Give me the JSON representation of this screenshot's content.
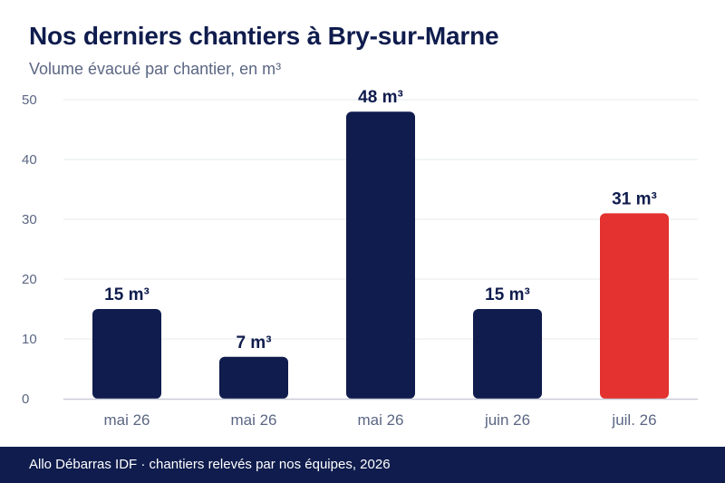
{
  "header": {
    "title": "Nos derniers chantiers à Bry-sur-Marne",
    "subtitle": "Volume évacué par chantier, en m³"
  },
  "footer": {
    "source": "Allo Débarras IDF · chantiers relevés par nos équipes, 2026"
  },
  "colors": {
    "bar": "#0f1c4d",
    "highlight": "#e3322f",
    "grid": "#e6e8ee",
    "axis": "#c9ccd8",
    "tick": "#5b6683",
    "label": "#0f1c4d"
  },
  "chart_data": {
    "type": "bar",
    "title": "Nos derniers chantiers à Bry-sur-Marne",
    "subtitle": "Volume évacué par chantier, en m³",
    "categories": [
      "mai 26",
      "mai 26",
      "mai 26",
      "juin 26",
      "juil. 26"
    ],
    "values": [
      15,
      7,
      48,
      15,
      31
    ],
    "data_labels": [
      "15 m³",
      "7 m³",
      "48 m³",
      "15 m³",
      "31 m³"
    ],
    "highlight_index": 4,
    "ylim": [
      0,
      50
    ],
    "yticks": [
      0,
      10,
      20,
      30,
      40,
      50
    ],
    "grid": true,
    "legend": "none"
  }
}
